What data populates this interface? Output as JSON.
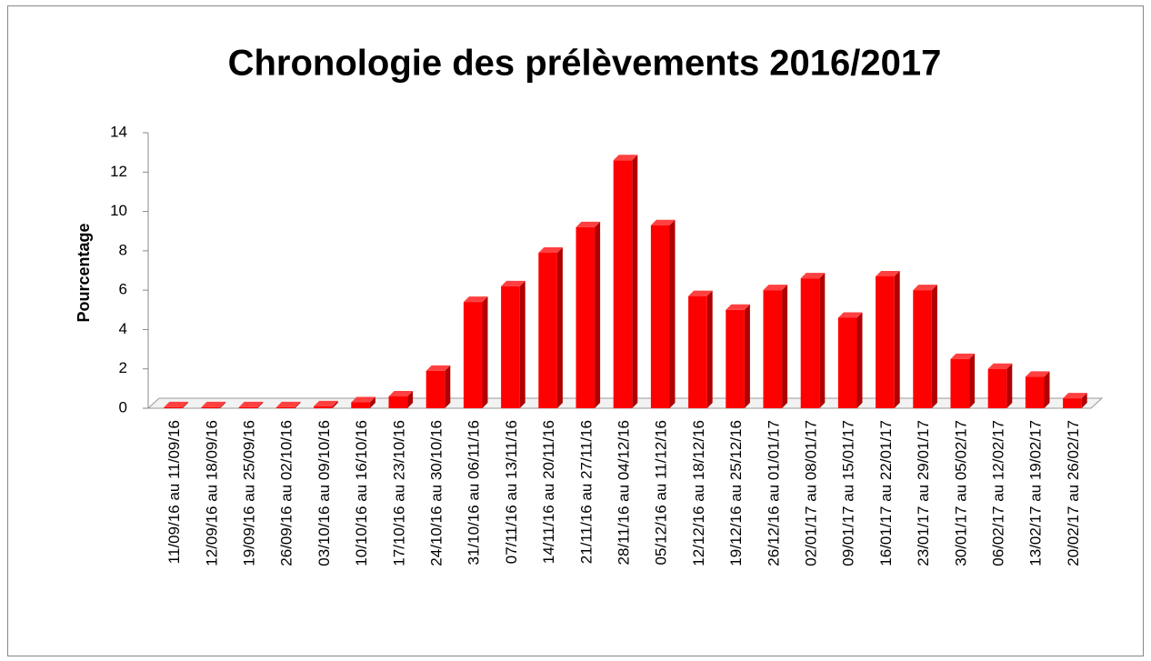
{
  "chart_data": {
    "type": "bar",
    "title": "Chronologie des prélèvements 2016/2017",
    "y_label": "Pourcentage",
    "categories": [
      "11/09/16 au 11/09/16",
      "12/09/16 au 18/09/16",
      "19/09/16 au 25/09/16",
      "26/09/16 au 02/10/16",
      "03/10/16 au 09/10/16",
      "10/10/16 au 16/10/16",
      "17/10/16 au 23/10/16",
      "24/10/16 au 30/10/16",
      "31/10/16 au 06/11/16",
      "07/11/16 au 13/11/16",
      "14/11/16 au 20/11/16",
      "21/11/16 au 27/11/16",
      "28/11/16 au 04/12/16",
      "05/12/16 au 11/12/16",
      "12/12/16 au 18/12/16",
      "19/12/16 au 25/12/16",
      "26/12/16 au 01/01/17",
      "02/01/17 au 08/01/17",
      "09/01/17 au 15/01/17",
      "16/01/17 au 22/01/17",
      "23/01/17 au 29/01/17",
      "30/01/17 au 05/02/17",
      "06/02/17 au 12/02/17",
      "13/02/17 au 19/02/17",
      "20/02/17 au 26/02/17"
    ],
    "values": [
      0.05,
      0.05,
      0.05,
      0.05,
      0.1,
      0.3,
      0.6,
      1.9,
      5.4,
      6.2,
      7.9,
      9.2,
      12.6,
      9.3,
      5.7,
      5.0,
      6.0,
      6.6,
      4.6,
      6.7,
      6.0,
      2.5,
      2.0,
      1.6,
      0.5
    ],
    "color": "#ff0000",
    "ylim": [
      0,
      14
    ],
    "yticks": [
      0,
      2,
      4,
      6,
      8,
      10,
      12,
      14
    ]
  }
}
